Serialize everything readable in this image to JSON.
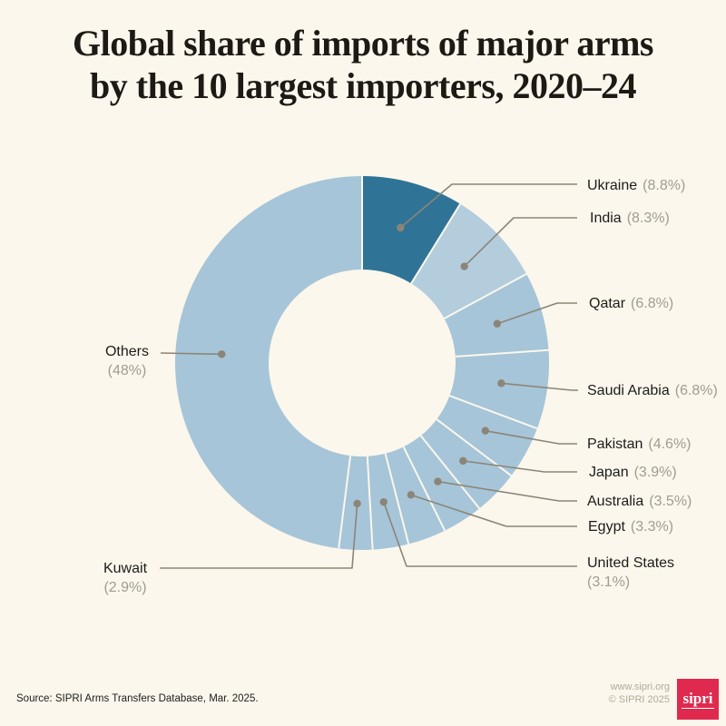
{
  "title": {
    "line1": "Global share of imports of major arms",
    "line2": "by the 10 largest importers, 2020–24"
  },
  "chart_data": {
    "type": "pie",
    "subtype": "donut",
    "title": "Global share of imports of major arms by the 10 largest importers, 2020–24",
    "unit": "percent of global major-arms imports",
    "start_angle_deg": 0,
    "direction": "clockwise",
    "label_style": "callout labels with leader lines and dots",
    "highlighted_slice": "Ukraine",
    "slices": [
      {
        "label": "Ukraine",
        "value": 8.8,
        "pct_label": "(8.8%)",
        "color": "#2f7496"
      },
      {
        "label": "India",
        "value": 8.3,
        "pct_label": "(8.3%)",
        "color": "#b3cddd"
      },
      {
        "label": "Qatar",
        "value": 6.8,
        "pct_label": "(6.8%)",
        "color": "#a6c5d8"
      },
      {
        "label": "Saudi Arabia",
        "value": 6.8,
        "pct_label": "(6.8%)",
        "color": "#a6c5d8"
      },
      {
        "label": "Pakistan",
        "value": 4.6,
        "pct_label": "(4.6%)",
        "color": "#a6c5d8"
      },
      {
        "label": "Japan",
        "value": 3.9,
        "pct_label": "(3.9%)",
        "color": "#a6c5d8"
      },
      {
        "label": "Australia",
        "value": 3.5,
        "pct_label": "(3.5%)",
        "color": "#a6c5d8"
      },
      {
        "label": "Egypt",
        "value": 3.3,
        "pct_label": "(3.3%)",
        "color": "#a6c5d8"
      },
      {
        "label": "United States",
        "value": 3.1,
        "pct_label": "(3.1%)",
        "color": "#a6c5d8"
      },
      {
        "label": "Kuwait",
        "value": 2.9,
        "pct_label": "(2.9%)",
        "color": "#a6c5d8"
      },
      {
        "label": "Others",
        "value": 48,
        "pct_label": "(48%)",
        "color": "#a6c5d8"
      }
    ]
  },
  "colors": {
    "background": "#fbf7ec",
    "highlight_slice": "#2f7496",
    "slice": "#a6c5d8",
    "separator": "#fbf7ec",
    "leader_line": "#8c8577",
    "label_text": "#1d1c1a",
    "pct_text": "#a29c90",
    "logo_red": "#e0294e"
  },
  "footer": {
    "source": "Source: SIPRI Arms Transfers Database, Mar. 2025.",
    "website": "www.sipri.org",
    "copyright": "© SIPRI 2025",
    "logo_text": "sipri"
  }
}
